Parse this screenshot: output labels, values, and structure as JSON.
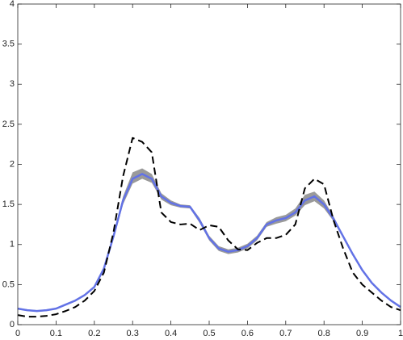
{
  "chart_data": {
    "type": "line",
    "xlim": [
      0,
      1
    ],
    "xticks": [
      0,
      0.1,
      0.2,
      0.3,
      0.4,
      0.5,
      0.6,
      0.7,
      0.8,
      0.9,
      1
    ],
    "ylim": [
      0,
      4
    ],
    "yticks": [
      0,
      0.5,
      1,
      1.5,
      2,
      2.5,
      3,
      3.5,
      4
    ],
    "grid": false,
    "x": [
      0,
      0.025,
      0.05,
      0.075,
      0.1,
      0.125,
      0.15,
      0.175,
      0.2,
      0.225,
      0.25,
      0.275,
      0.3,
      0.325,
      0.35,
      0.375,
      0.4,
      0.425,
      0.45,
      0.475,
      0.5,
      0.525,
      0.55,
      0.575,
      0.6,
      0.625,
      0.65,
      0.675,
      0.7,
      0.725,
      0.75,
      0.775,
      0.8,
      0.825,
      0.85,
      0.875,
      0.9,
      0.925,
      0.95,
      0.975,
      1
    ],
    "band": {
      "color": "#9a9a9a",
      "upper": [
        0.21,
        0.19,
        0.18,
        0.19,
        0.21,
        0.26,
        0.31,
        0.38,
        0.48,
        0.72,
        1.13,
        1.6,
        1.9,
        1.95,
        1.88,
        1.64,
        1.55,
        1.5,
        1.49,
        1.33,
        1.11,
        0.98,
        0.94,
        0.96,
        1.01,
        1.11,
        1.28,
        1.34,
        1.37,
        1.45,
        1.62,
        1.66,
        1.55,
        1.35,
        1.12,
        0.9,
        0.69,
        0.53,
        0.41,
        0.31,
        0.23
      ],
      "lower": [
        0.19,
        0.17,
        0.16,
        0.17,
        0.19,
        0.24,
        0.29,
        0.36,
        0.46,
        0.68,
        1.07,
        1.5,
        1.76,
        1.82,
        1.77,
        1.56,
        1.49,
        1.46,
        1.45,
        1.27,
        1.05,
        0.92,
        0.88,
        0.9,
        0.95,
        1.05,
        1.22,
        1.26,
        1.29,
        1.36,
        1.49,
        1.54,
        1.45,
        1.29,
        1.08,
        0.86,
        0.67,
        0.51,
        0.39,
        0.29,
        0.21
      ]
    },
    "series": [
      {
        "color": "#6272e6",
        "linestyle": "solid",
        "values": [
          0.2,
          0.18,
          0.17,
          0.18,
          0.2,
          0.25,
          0.3,
          0.37,
          0.47,
          0.7,
          1.1,
          1.55,
          1.82,
          1.88,
          1.82,
          1.6,
          1.52,
          1.48,
          1.47,
          1.3,
          1.08,
          0.95,
          0.91,
          0.93,
          0.98,
          1.08,
          1.25,
          1.3,
          1.33,
          1.4,
          1.55,
          1.6,
          1.5,
          1.32,
          1.1,
          0.88,
          0.68,
          0.52,
          0.4,
          0.3,
          0.22
        ]
      },
      {
        "color": "#000000",
        "linestyle": "dashed",
        "values": [
          0.12,
          0.1,
          0.1,
          0.11,
          0.13,
          0.17,
          0.22,
          0.3,
          0.42,
          0.65,
          1.15,
          1.85,
          2.33,
          2.28,
          2.15,
          1.4,
          1.28,
          1.25,
          1.26,
          1.18,
          1.24,
          1.22,
          1.05,
          0.94,
          0.93,
          1.02,
          1.08,
          1.08,
          1.12,
          1.25,
          1.7,
          1.82,
          1.75,
          1.3,
          0.95,
          0.65,
          0.5,
          0.4,
          0.3,
          0.22,
          0.18
        ]
      }
    ]
  }
}
